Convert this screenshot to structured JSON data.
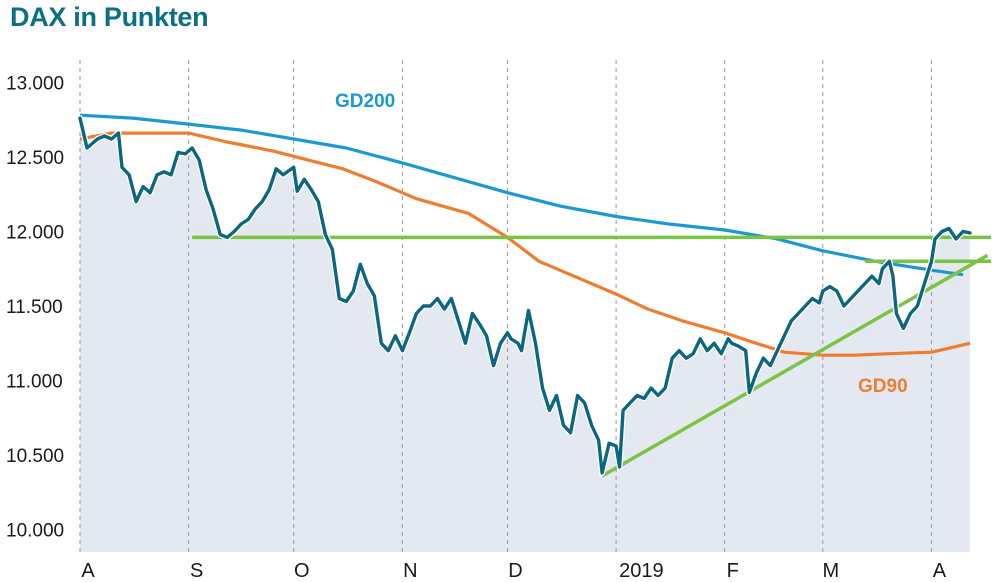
{
  "chart_data": {
    "type": "line",
    "title": "DAX in Punkten",
    "xlabel": "",
    "ylabel": "",
    "ylim": [
      9850,
      13150
    ],
    "grid": "vertical dashed at month starts",
    "y_ticks": [
      {
        "value": 13000,
        "label": "13.000"
      },
      {
        "value": 12500,
        "label": "12.500"
      },
      {
        "value": 12000,
        "label": "12.000"
      },
      {
        "value": 11500,
        "label": "11.500"
      },
      {
        "value": 11000,
        "label": "11.000"
      },
      {
        "value": 10500,
        "label": "10.500"
      },
      {
        "value": 10000,
        "label": "10.000"
      }
    ],
    "x_ticks": [
      {
        "date": "2018-08-01",
        "label": "A"
      },
      {
        "date": "2018-09-01",
        "label": "S"
      },
      {
        "date": "2018-10-01",
        "label": "O"
      },
      {
        "date": "2018-11-01",
        "label": "N"
      },
      {
        "date": "2018-12-01",
        "label": "D"
      },
      {
        "date": "2019-01-01",
        "label": "2019"
      },
      {
        "date": "2019-02-01",
        "label": "F"
      },
      {
        "date": "2019-03-01",
        "label": "M"
      },
      {
        "date": "2019-04-01",
        "label": "A"
      }
    ],
    "x_range": [
      "2018-08-01",
      "2019-04-12"
    ],
    "colors": {
      "dax": "#0d6680",
      "gd200": "#1c9ad0",
      "gd90": "#ee7d30",
      "trendlines": "#7cc243",
      "area": "#e3e8f1",
      "grid": "#9a9a9a"
    },
    "series": [
      {
        "id": "dax",
        "points": [
          [
            "2018-08-01",
            12760
          ],
          [
            "2018-08-03",
            12560
          ],
          [
            "2018-08-06",
            12620
          ],
          [
            "2018-08-08",
            12640
          ],
          [
            "2018-08-10",
            12620
          ],
          [
            "2018-08-12",
            12660
          ],
          [
            "2018-08-13",
            12430
          ],
          [
            "2018-08-15",
            12380
          ],
          [
            "2018-08-17",
            12200
          ],
          [
            "2018-08-19",
            12300
          ],
          [
            "2018-08-21",
            12260
          ],
          [
            "2018-08-23",
            12380
          ],
          [
            "2018-08-25",
            12400
          ],
          [
            "2018-08-27",
            12380
          ],
          [
            "2018-08-29",
            12530
          ],
          [
            "2018-08-31",
            12520
          ],
          [
            "2018-09-02",
            12560
          ],
          [
            "2018-09-04",
            12480
          ],
          [
            "2018-09-06",
            12280
          ],
          [
            "2018-09-08",
            12150
          ],
          [
            "2018-09-10",
            11980
          ],
          [
            "2018-09-12",
            11960
          ],
          [
            "2018-09-14",
            12000
          ],
          [
            "2018-09-16",
            12050
          ],
          [
            "2018-09-18",
            12080
          ],
          [
            "2018-09-20",
            12150
          ],
          [
            "2018-09-22",
            12200
          ],
          [
            "2018-09-24",
            12280
          ],
          [
            "2018-09-26",
            12420
          ],
          [
            "2018-09-28",
            12380
          ],
          [
            "2018-10-01",
            12430
          ],
          [
            "2018-10-02",
            12270
          ],
          [
            "2018-10-04",
            12350
          ],
          [
            "2018-10-06",
            12280
          ],
          [
            "2018-10-08",
            12200
          ],
          [
            "2018-10-10",
            11980
          ],
          [
            "2018-10-12",
            11880
          ],
          [
            "2018-10-14",
            11550
          ],
          [
            "2018-10-16",
            11530
          ],
          [
            "2018-10-18",
            11600
          ],
          [
            "2018-10-20",
            11780
          ],
          [
            "2018-10-22",
            11650
          ],
          [
            "2018-10-24",
            11570
          ],
          [
            "2018-10-26",
            11250
          ],
          [
            "2018-10-28",
            11200
          ],
          [
            "2018-10-30",
            11300
          ],
          [
            "2018-11-01",
            11200
          ],
          [
            "2018-11-03",
            11320
          ],
          [
            "2018-11-05",
            11450
          ],
          [
            "2018-11-07",
            11500
          ],
          [
            "2018-11-09",
            11500
          ],
          [
            "2018-11-11",
            11550
          ],
          [
            "2018-11-13",
            11480
          ],
          [
            "2018-11-15",
            11550
          ],
          [
            "2018-11-17",
            11400
          ],
          [
            "2018-11-19",
            11250
          ],
          [
            "2018-11-21",
            11450
          ],
          [
            "2018-11-23",
            11380
          ],
          [
            "2018-11-25",
            11300
          ],
          [
            "2018-11-27",
            11100
          ],
          [
            "2018-11-29",
            11250
          ],
          [
            "2018-12-01",
            11320
          ],
          [
            "2018-12-02",
            11280
          ],
          [
            "2018-12-04",
            11250
          ],
          [
            "2018-12-05",
            11200
          ],
          [
            "2018-12-07",
            11470
          ],
          [
            "2018-12-09",
            11250
          ],
          [
            "2018-12-11",
            10950
          ],
          [
            "2018-12-13",
            10800
          ],
          [
            "2018-12-15",
            10900
          ],
          [
            "2018-12-17",
            10700
          ],
          [
            "2018-12-19",
            10650
          ],
          [
            "2018-12-21",
            10900
          ],
          [
            "2018-12-23",
            10850
          ],
          [
            "2018-12-25",
            10700
          ],
          [
            "2018-12-27",
            10600
          ],
          [
            "2018-12-28",
            10380
          ],
          [
            "2018-12-30",
            10580
          ],
          [
            "2019-01-01",
            10560
          ],
          [
            "2019-01-02",
            10420
          ],
          [
            "2019-01-03",
            10800
          ],
          [
            "2019-01-05",
            10850
          ],
          [
            "2019-01-07",
            10900
          ],
          [
            "2019-01-09",
            10880
          ],
          [
            "2019-01-11",
            10950
          ],
          [
            "2019-01-13",
            10900
          ],
          [
            "2019-01-15",
            10950
          ],
          [
            "2019-01-17",
            11150
          ],
          [
            "2019-01-19",
            11200
          ],
          [
            "2019-01-21",
            11150
          ],
          [
            "2019-01-23",
            11180
          ],
          [
            "2019-01-25",
            11280
          ],
          [
            "2019-01-27",
            11200
          ],
          [
            "2019-01-29",
            11250
          ],
          [
            "2019-01-31",
            11180
          ],
          [
            "2019-02-02",
            11280
          ],
          [
            "2019-02-03",
            11250
          ],
          [
            "2019-02-05",
            11230
          ],
          [
            "2019-02-07",
            11200
          ],
          [
            "2019-02-08",
            10920
          ],
          [
            "2019-02-10",
            11050
          ],
          [
            "2019-02-12",
            11150
          ],
          [
            "2019-02-14",
            11100
          ],
          [
            "2019-02-16",
            11200
          ],
          [
            "2019-02-18",
            11300
          ],
          [
            "2019-02-20",
            11400
          ],
          [
            "2019-02-22",
            11450
          ],
          [
            "2019-02-24",
            11500
          ],
          [
            "2019-02-26",
            11550
          ],
          [
            "2019-02-28",
            11520
          ],
          [
            "2019-03-01",
            11600
          ],
          [
            "2019-03-03",
            11630
          ],
          [
            "2019-03-05",
            11600
          ],
          [
            "2019-03-07",
            11500
          ],
          [
            "2019-03-09",
            11550
          ],
          [
            "2019-03-11",
            11600
          ],
          [
            "2019-03-13",
            11650
          ],
          [
            "2019-03-15",
            11700
          ],
          [
            "2019-03-17",
            11650
          ],
          [
            "2019-03-18",
            11750
          ],
          [
            "2019-03-20",
            11800
          ],
          [
            "2019-03-21",
            11700
          ],
          [
            "2019-03-22",
            11450
          ],
          [
            "2019-03-24",
            11350
          ],
          [
            "2019-03-26",
            11450
          ],
          [
            "2019-03-28",
            11500
          ],
          [
            "2019-03-30",
            11650
          ],
          [
            "2019-04-01",
            11800
          ],
          [
            "2019-04-02",
            11950
          ],
          [
            "2019-04-04",
            12000
          ],
          [
            "2019-04-06",
            12020
          ],
          [
            "2019-04-08",
            11950
          ],
          [
            "2019-04-10",
            12000
          ],
          [
            "2019-04-12",
            11990
          ]
        ]
      },
      {
        "id": "gd200",
        "label": "GD200",
        "points": [
          [
            "2018-08-01",
            12780
          ],
          [
            "2018-08-16",
            12760
          ],
          [
            "2018-09-01",
            12720
          ],
          [
            "2018-09-16",
            12680
          ],
          [
            "2018-10-01",
            12620
          ],
          [
            "2018-10-16",
            12560
          ],
          [
            "2018-11-01",
            12460
          ],
          [
            "2018-11-16",
            12360
          ],
          [
            "2018-12-01",
            12260
          ],
          [
            "2018-12-16",
            12170
          ],
          [
            "2019-01-01",
            12100
          ],
          [
            "2019-01-16",
            12050
          ],
          [
            "2019-02-01",
            12010
          ],
          [
            "2019-02-16",
            11950
          ],
          [
            "2019-03-01",
            11870
          ],
          [
            "2019-03-16",
            11800
          ],
          [
            "2019-04-01",
            11740
          ],
          [
            "2019-04-10",
            11710
          ]
        ]
      },
      {
        "id": "gd90",
        "label": "GD90",
        "points": [
          [
            "2018-08-01",
            12620
          ],
          [
            "2018-08-10",
            12660
          ],
          [
            "2018-08-20",
            12660
          ],
          [
            "2018-09-01",
            12660
          ],
          [
            "2018-09-12",
            12600
          ],
          [
            "2018-09-25",
            12540
          ],
          [
            "2018-10-05",
            12480
          ],
          [
            "2018-10-15",
            12420
          ],
          [
            "2018-10-25",
            12330
          ],
          [
            "2018-11-05",
            12220
          ],
          [
            "2018-11-20",
            12120
          ],
          [
            "2018-12-01",
            11960
          ],
          [
            "2018-12-10",
            11800
          ],
          [
            "2018-12-20",
            11700
          ],
          [
            "2019-01-01",
            11580
          ],
          [
            "2019-01-10",
            11480
          ],
          [
            "2019-01-20",
            11400
          ],
          [
            "2019-02-01",
            11320
          ],
          [
            "2019-02-10",
            11250
          ],
          [
            "2019-02-18",
            11190
          ],
          [
            "2019-03-01",
            11170
          ],
          [
            "2019-03-10",
            11170
          ],
          [
            "2019-03-20",
            11180
          ],
          [
            "2019-04-01",
            11190
          ],
          [
            "2019-04-12",
            11250
          ]
        ]
      }
    ],
    "trendlines": [
      {
        "id": "support-horizontal",
        "from": [
          "2018-09-02",
          11960
        ],
        "to": [
          "2019-04-18",
          11960
        ]
      },
      {
        "id": "resistance-horizontal",
        "from": [
          "2019-03-13",
          11800
        ],
        "to": [
          "2019-04-18",
          11800
        ]
      },
      {
        "id": "uptrend",
        "from": [
          "2018-12-28",
          10360
        ],
        "to": [
          "2019-04-17",
          11840
        ]
      }
    ]
  }
}
